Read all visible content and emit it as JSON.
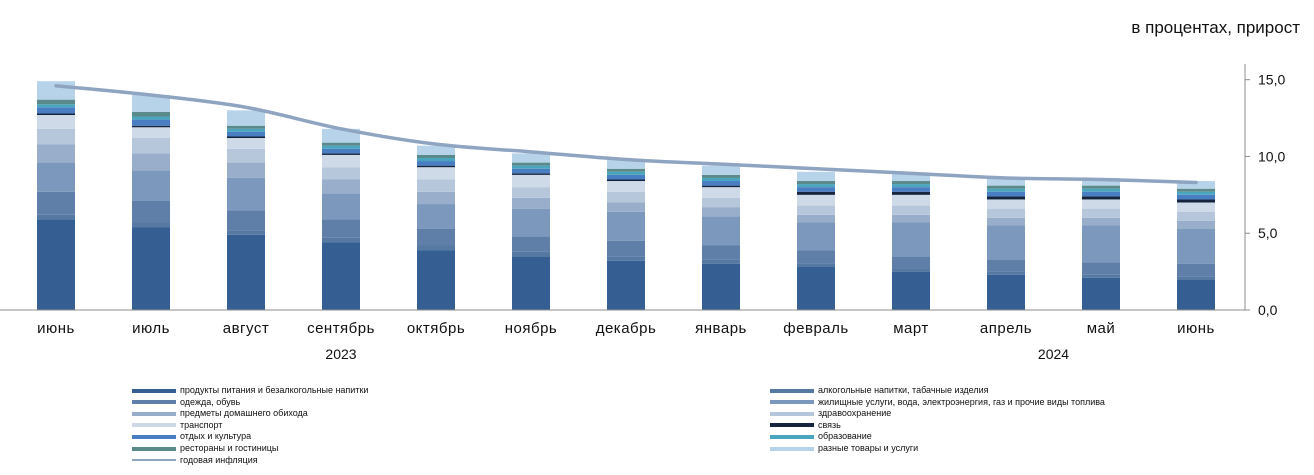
{
  "unit_label": "в процентах, прирост",
  "colors": {
    "food": "#355f92",
    "alcohol": "#5679a3",
    "clothing": "#5f7fa8",
    "housing": "#7c99bd",
    "household": "#98aecb",
    "health": "#b7c7db",
    "transport": "#cfdae8",
    "communication": "#14253d",
    "recreation": "#4a7ec3",
    "education": "#4aa5bf",
    "restaurants": "#5b8a8b",
    "misc": "#b6d3ea",
    "inflation_line": "#8ea4c0"
  },
  "chart_data": {
    "type": "bar",
    "stacked": true,
    "categories": [
      "июнь",
      "июль",
      "август",
      "сентябрь",
      "октябрь",
      "ноябрь",
      "декабрь",
      "январь",
      "февраль",
      "март",
      "апрель",
      "май",
      "июнь"
    ],
    "year_labels": [
      {
        "text": "2023",
        "category_index": 3
      },
      {
        "text": "2024",
        "category_index": 10.5
      }
    ],
    "ylim": [
      0,
      15.5
    ],
    "yticks": [
      "0,0",
      "5,0",
      "10,0",
      "15,0"
    ],
    "ytick_values": [
      0,
      5,
      10,
      15
    ],
    "y_axis_position": "right",
    "grid": false,
    "legend_position": "bottom",
    "series": [
      {
        "name": "продукты питания и безалкогольные напитки",
        "key": "food",
        "values": [
          5.9,
          5.4,
          4.9,
          4.4,
          3.9,
          3.5,
          3.2,
          3.0,
          2.8,
          2.5,
          2.3,
          2.1,
          2.0
        ]
      },
      {
        "name": "алкогольные напитки, табачные изделия",
        "key": "alcohol",
        "values": [
          0.3,
          0.3,
          0.3,
          0.3,
          0.3,
          0.3,
          0.3,
          0.3,
          0.2,
          0.2,
          0.2,
          0.2,
          0.2
        ]
      },
      {
        "name": "одежда, обувь",
        "key": "clothing",
        "values": [
          1.5,
          1.4,
          1.3,
          1.2,
          1.1,
          1.0,
          1.0,
          0.9,
          0.9,
          0.8,
          0.8,
          0.8,
          0.8
        ]
      },
      {
        "name": "жилищные услуги, вода, электроэнергия, газ и прочие виды топлива",
        "key": "housing",
        "values": [
          1.9,
          2.0,
          2.1,
          1.7,
          1.6,
          1.8,
          1.9,
          1.9,
          1.8,
          2.2,
          2.2,
          2.4,
          2.3
        ]
      },
      {
        "name": "предметы домашнего обихода",
        "key": "household",
        "values": [
          1.2,
          1.1,
          1.0,
          0.9,
          0.8,
          0.7,
          0.6,
          0.6,
          0.5,
          0.5,
          0.5,
          0.5,
          0.5
        ]
      },
      {
        "name": "здравоохранение",
        "key": "health",
        "values": [
          1.0,
          1.0,
          0.9,
          0.8,
          0.8,
          0.7,
          0.7,
          0.6,
          0.6,
          0.6,
          0.6,
          0.6,
          0.6
        ]
      },
      {
        "name": "транспорт",
        "key": "transport",
        "values": [
          0.9,
          0.7,
          0.7,
          0.8,
          0.8,
          0.8,
          0.7,
          0.7,
          0.7,
          0.7,
          0.6,
          0.6,
          0.6
        ]
      },
      {
        "name": "связь",
        "key": "communication",
        "values": [
          0.1,
          0.1,
          0.1,
          0.1,
          0.1,
          0.1,
          0.1,
          0.1,
          0.2,
          0.2,
          0.2,
          0.2,
          0.2
        ]
      },
      {
        "name": "отдых и культура",
        "key": "recreation",
        "values": [
          0.4,
          0.4,
          0.3,
          0.3,
          0.3,
          0.3,
          0.3,
          0.3,
          0.3,
          0.3,
          0.3,
          0.3,
          0.3
        ]
      },
      {
        "name": "образование",
        "key": "education",
        "values": [
          0.2,
          0.2,
          0.2,
          0.2,
          0.2,
          0.2,
          0.2,
          0.2,
          0.2,
          0.2,
          0.2,
          0.2,
          0.2
        ]
      },
      {
        "name": "рестораны и гостиницы",
        "key": "restaurants",
        "values": [
          0.3,
          0.3,
          0.2,
          0.2,
          0.2,
          0.2,
          0.2,
          0.2,
          0.2,
          0.2,
          0.2,
          0.2,
          0.2
        ]
      },
      {
        "name": "разные товары и услуги",
        "key": "misc",
        "values": [
          1.2,
          1.1,
          1.0,
          0.9,
          0.6,
          0.6,
          0.6,
          0.6,
          0.6,
          0.5,
          0.5,
          0.5,
          0.5
        ]
      }
    ],
    "line_series": {
      "name": "годовая инфляция",
      "key": "inflation_line",
      "values": [
        14.6,
        14.0,
        13.2,
        11.8,
        10.8,
        10.3,
        9.8,
        9.5,
        9.2,
        8.9,
        8.6,
        8.5,
        8.3
      ]
    }
  }
}
